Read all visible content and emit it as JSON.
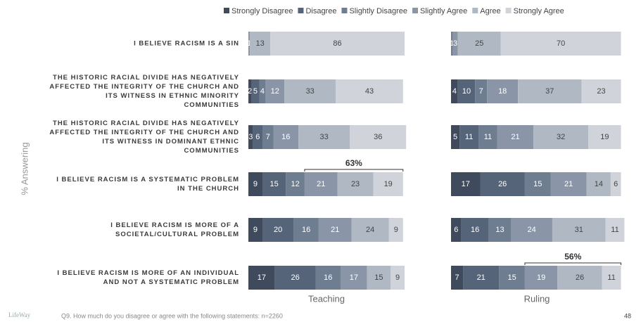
{
  "chart_data": {
    "type": "bar",
    "orientation": "horizontal",
    "stacked": true,
    "y_label": "% Answering",
    "xlim": [
      0,
      100
    ],
    "legend": [
      {
        "name": "Strongly Disagree",
        "color": "#3f4b5c"
      },
      {
        "name": "Disagree",
        "color": "#56647a"
      },
      {
        "name": "Slightly Disagree",
        "color": "#6f7d90"
      },
      {
        "name": "Slightly Agree",
        "color": "#8a96a7"
      },
      {
        "name": "Agree",
        "color": "#b0b8c4"
      },
      {
        "name": "Strongly Agree",
        "color": "#d0d4da"
      }
    ],
    "categories": [
      [
        "I BELIEVE RACISM IS A SIN"
      ],
      [
        "THE HISTORIC RACIAL DIVIDE HAS NEGATIVELY",
        "AFFECTED THE INTEGRITY OF THE CHURCH AND",
        "ITS WITNESS IN ETHNIC MINORITY",
        "COMMUNITIES"
      ],
      [
        "THE HISTORIC RACIAL DIVIDE HAS NEGATIVELY",
        "AFFECTED THE INTEGRITY OF THE CHURCH AND",
        "ITS WITNESS IN DOMINANT ETHNIC",
        "COMMUNITIES"
      ],
      [
        "I BELIEVE RACISM IS A SYSTEMATIC PROBLEM",
        "IN THE CHURCH"
      ],
      [
        "I BELIEVE RACISM IS MORE OF A",
        "SOCIETAL/CULTURAL PROBLEM"
      ],
      [
        "I BELIEVE RACISM IS MORE OF AN INDIVIDUAL",
        "AND NOT A SYSTEMATIC PROBLEM"
      ]
    ],
    "panels": [
      {
        "title": "Teaching",
        "annotation": "63%",
        "series": [
          {
            "values": [
              0,
              2,
              3,
              9,
              9,
              17
            ]
          },
          {
            "values": [
              0,
              5,
              6,
              15,
              20,
              26
            ]
          },
          {
            "values": [
              0,
              4,
              7,
              12,
              16,
              16
            ]
          },
          {
            "values": [
              1,
              12,
              16,
              21,
              21,
              17
            ]
          },
          {
            "values": [
              13,
              33,
              33,
              23,
              24,
              15
            ]
          },
          {
            "values": [
              86,
              43,
              36,
              19,
              9,
              9
            ]
          }
        ]
      },
      {
        "title": "Ruling",
        "annotation": "56%",
        "series": [
          {
            "values": [
              0,
              4,
              5,
              17,
              6,
              7
            ]
          },
          {
            "values": [
              0,
              10,
              11,
              26,
              16,
              21
            ]
          },
          {
            "values": [
              1,
              7,
              11,
              15,
              13,
              15
            ]
          },
          {
            "values": [
              3,
              18,
              21,
              21,
              24,
              19
            ]
          },
          {
            "values": [
              25,
              37,
              32,
              14,
              31,
              26
            ]
          },
          {
            "values": [
              70,
              23,
              19,
              6,
              11,
              11
            ]
          }
        ]
      }
    ],
    "footnote": "Q9. How much do you disagree or agree with the following statements: n=2260",
    "page_number": "48",
    "logo": "LifeWay"
  }
}
